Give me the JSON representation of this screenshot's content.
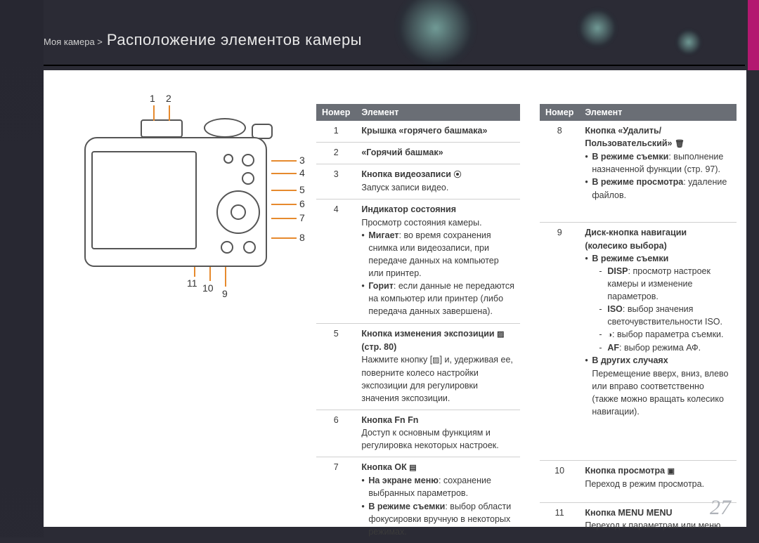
{
  "header": {
    "breadcrumb_prefix": "Моя камера >",
    "title": "Расположение элементов камеры"
  },
  "page_number": "27",
  "diagram": {
    "callouts": [
      "1",
      "2",
      "3",
      "4",
      "5",
      "6",
      "7",
      "8",
      "9",
      "10",
      "11"
    ]
  },
  "table_headers": {
    "num": "Номер",
    "elem": "Элемент"
  },
  "left_rows": [
    {
      "n": "1",
      "html": "<span class='b'>Крышка «горячего башмака»</span>"
    },
    {
      "n": "2",
      "html": "<span class='b'>«Горячий башмак»</span>"
    },
    {
      "n": "3",
      "html": "<span class='b'>Кнопка видеозаписи <span class='icon-box'>⦿</span></span><br>Запуск записи видео."
    },
    {
      "n": "4",
      "html": "<span class='b'>Индикатор состояния</span><br>Просмотр состояния камеры.<ul class='bul'><li><span class='b'>Мигает</span>: во время сохранения снимка или видеозаписи, при передаче данных на компьютер или принтер.</li><li><span class='b'>Горит</span>: если данные не передаются на компьютер или принтер (либо передача данных завершена).</li></ul>"
    },
    {
      "n": "5",
      "html": "<span class='b'>Кнопка изменения экспозиции <span class='icon-box'>▨</span> (стр. 80)</span><br>Нажмите кнопку [<span class='icon-box'>▨</span>] и, удерживая ее, поверните колесо настройки экспозиции для регулировки значения экспозиции."
    },
    {
      "n": "6",
      "html": "<span class='b'>Кнопка Fn</span> <span style='font-family:Arial;font-weight:bold'>Fn</span><br>Доступ к основным функциям и регулировка некоторых настроек."
    },
    {
      "n": "7",
      "html": "<span class='b'>Кнопка ОК <span class='icon-box'>▤</span></span><ul class='bul'><li><span class='b'>На экране меню</span>: сохранение выбранных параметров.</li><li><span class='b'>В режиме съемки</span>: выбор области фокусировки вручную в некоторых режимах.</li></ul>"
    }
  ],
  "right_rows": [
    {
      "n": "8",
      "html": "<span class='b'>Кнопка «Удалить/ Пользовательский» <span class='icon-box'>🗑</span></span><ul class='bul'><li><span class='b'>В режиме съемки</span>: выполнение назначенной функции (стр. 97).</li><li><span class='b'>В режиме просмотра</span>: удаление файлов.</li></ul>"
    },
    {
      "n": "9",
      "html": "<span class='b'>Диск-кнопка навигации (колесико выбора)</span><ul class='bul'><li><span class='b'>В режиме съемки</span><ul class='dash'><li><span style='font-weight:bold'>DISP</span>: просмотр настроек камеры и изменение параметров.</li><li><span style='font-weight:bold'>ISO</span>: выбор значения светочувствительности ISO.</li><li><span class='icon-box'>◑</span>: выбор параметра съемки.</li><li><span style='font-weight:bold'>AF</span>: выбор режима АФ.</li></ul></li><li><span class='b'>В других случаях</span><br>Перемещение вверх, вниз, влево или вправо соответственно (также можно вращать колесико навигации).</li></ul>"
    },
    {
      "n": "10",
      "html": "<span class='b'>Кнопка просмотра <span class='icon-box'>▣</span></span><br>Переход в режим просмотра."
    },
    {
      "n": "11",
      "html": "<span class='b'>Кнопка MENU</span> <span style='font-weight:bold'>MENU</span><br>Переход к параметрам или меню."
    }
  ],
  "colors": {
    "leader": "#e68a2e",
    "header_bg": "#6a6e75",
    "pink": "#b31870",
    "page_bg": "#ffffff",
    "body_bg": "#2b2b35"
  }
}
